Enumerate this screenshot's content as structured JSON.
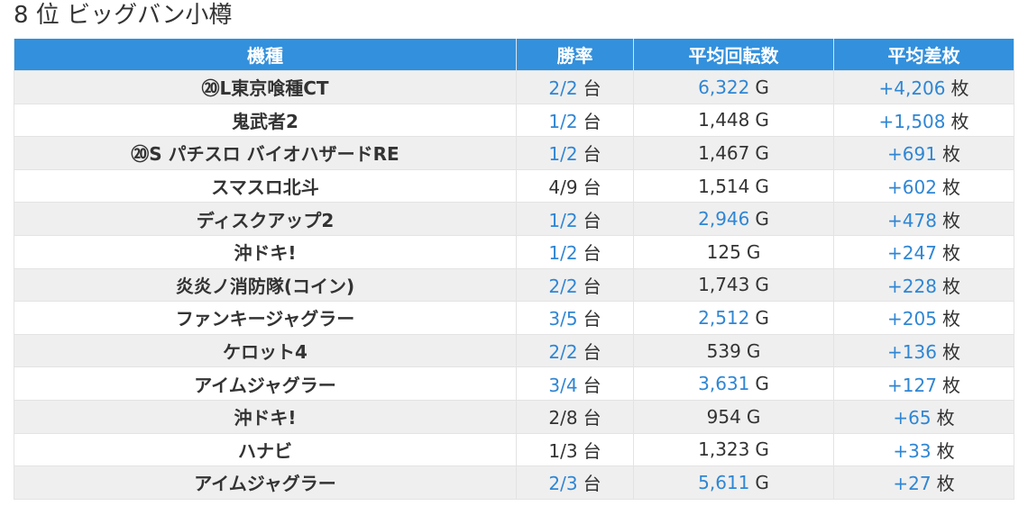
{
  "page": {
    "title": "8 位 ビッグバン小樽"
  },
  "table": {
    "headers": [
      "機種",
      "勝率",
      "平均回転数",
      "平均差枚"
    ],
    "rows": [
      {
        "machine": "⑳L東京喰種CT",
        "win_rate": "2/2",
        "win_unit": "台",
        "avg_spins": "6,322",
        "spins_unit": "G",
        "avg_diff": "+4,206",
        "diff_unit": "枚",
        "win_link": true,
        "spins_link": true,
        "diff_link": true
      },
      {
        "machine": "鬼武者2",
        "win_rate": "1/2",
        "win_unit": "台",
        "avg_spins": "1,448",
        "spins_unit": "G",
        "avg_diff": "+1,508",
        "diff_unit": "枚",
        "win_link": true,
        "spins_link": false,
        "diff_link": true
      },
      {
        "machine": "⑳S パチスロ バイオハザードRE",
        "win_rate": "1/2",
        "win_unit": "台",
        "avg_spins": "1,467",
        "spins_unit": "G",
        "avg_diff": "+691",
        "diff_unit": "枚",
        "win_link": true,
        "spins_link": false,
        "diff_link": true
      },
      {
        "machine": "スマスロ北斗",
        "win_rate": "4/9",
        "win_unit": "台",
        "avg_spins": "1,514",
        "spins_unit": "G",
        "avg_diff": "+602",
        "diff_unit": "枚",
        "win_link": false,
        "spins_link": false,
        "diff_link": true
      },
      {
        "machine": "ディスクアップ2",
        "win_rate": "1/2",
        "win_unit": "台",
        "avg_spins": "2,946",
        "spins_unit": "G",
        "avg_diff": "+478",
        "diff_unit": "枚",
        "win_link": true,
        "spins_link": true,
        "diff_link": true
      },
      {
        "machine": "沖ドキ!",
        "win_rate": "1/2",
        "win_unit": "台",
        "avg_spins": "125",
        "spins_unit": "G",
        "avg_diff": "+247",
        "diff_unit": "枚",
        "win_link": true,
        "spins_link": false,
        "diff_link": true
      },
      {
        "machine": "炎炎ノ消防隊(コイン)",
        "win_rate": "2/2",
        "win_unit": "台",
        "avg_spins": "1,743",
        "spins_unit": "G",
        "avg_diff": "+228",
        "diff_unit": "枚",
        "win_link": true,
        "spins_link": false,
        "diff_link": true
      },
      {
        "machine": "ファンキージャグラー",
        "win_rate": "3/5",
        "win_unit": "台",
        "avg_spins": "2,512",
        "spins_unit": "G",
        "avg_diff": "+205",
        "diff_unit": "枚",
        "win_link": true,
        "spins_link": true,
        "diff_link": true
      },
      {
        "machine": "ケロット4",
        "win_rate": "2/2",
        "win_unit": "台",
        "avg_spins": "539",
        "spins_unit": "G",
        "avg_diff": "+136",
        "diff_unit": "枚",
        "win_link": true,
        "spins_link": false,
        "diff_link": true
      },
      {
        "machine": "アイムジャグラー",
        "win_rate": "3/4",
        "win_unit": "台",
        "avg_spins": "3,631",
        "spins_unit": "G",
        "avg_diff": "+127",
        "diff_unit": "枚",
        "win_link": true,
        "spins_link": true,
        "diff_link": true
      },
      {
        "machine": "沖ドキ!",
        "win_rate": "2/8",
        "win_unit": "台",
        "avg_spins": "954",
        "spins_unit": "G",
        "avg_diff": "+65",
        "diff_unit": "枚",
        "win_link": false,
        "spins_link": false,
        "diff_link": true
      },
      {
        "machine": "ハナビ",
        "win_rate": "1/3",
        "win_unit": "台",
        "avg_spins": "1,323",
        "spins_unit": "G",
        "avg_diff": "+33",
        "diff_unit": "枚",
        "win_link": false,
        "spins_link": false,
        "diff_link": true
      },
      {
        "machine": "アイムジャグラー",
        "win_rate": "2/3",
        "win_unit": "台",
        "avg_spins": "5,611",
        "spins_unit": "G",
        "avg_diff": "+27",
        "diff_unit": "枚",
        "win_link": true,
        "spins_link": true,
        "diff_link": true
      }
    ]
  },
  "colors": {
    "header_bg": "#3390dc",
    "link": "#2f86d4",
    "stripe": "#efefef"
  }
}
